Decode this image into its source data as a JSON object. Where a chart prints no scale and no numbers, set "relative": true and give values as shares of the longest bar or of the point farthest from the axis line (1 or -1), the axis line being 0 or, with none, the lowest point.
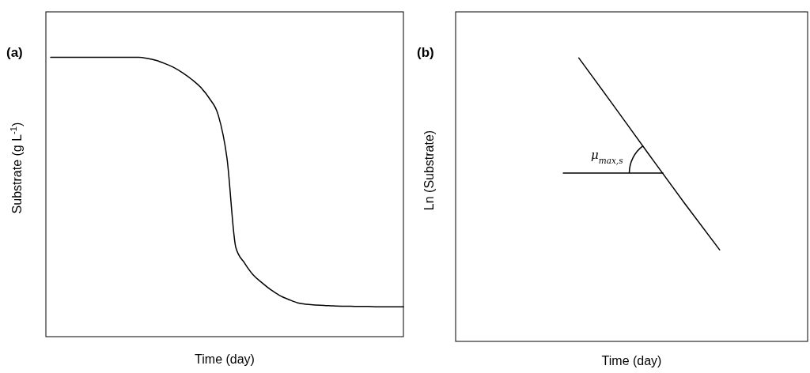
{
  "chart_data": [
    {
      "type": "line",
      "title": "(a)",
      "xlabel": "Time (day)",
      "ylabel": "Substrate (g L$^{-1}$)",
      "relative": true,
      "categories": [
        null,
        null,
        null,
        null,
        null,
        null,
        null,
        null,
        null,
        null,
        null,
        null,
        null,
        null,
        null,
        null,
        null,
        null,
        null,
        null,
        null,
        null,
        null,
        null,
        null,
        null,
        null,
        null,
        null,
        null,
        null,
        null,
        null,
        null,
        null,
        null,
        null,
        null,
        null,
        null,
        null
      ],
      "series": [
        {
          "color": "#000000",
          "values": [
            1.0,
            1.0,
            1.0,
            1.0,
            1.0,
            1.0,
            1.0,
            1.0,
            1.0,
            1.0,
            1.0,
            0.996,
            0.989,
            0.977,
            0.963,
            0.944,
            0.921,
            0.893,
            0.853,
            0.794,
            0.638,
            0.319,
            0.263,
            0.22,
            0.192,
            0.167,
            0.147,
            0.133,
            0.121,
            0.116,
            0.113,
            0.112,
            0.11,
            0.109,
            0.109,
            0.108,
            0.108,
            0.107,
            0.107,
            0.107,
            0.107
          ]
        }
      ]
    },
    {
      "type": "line",
      "title": "(b)",
      "xlabel": "Time (day)",
      "ylabel": "Ln (Substrate)",
      "relative": true,
      "categories": [
        null,
        null,
        null,
        null,
        null,
        null,
        null,
        null,
        null,
        null
      ],
      "annotations": [
        "μ$_{max,s}$"
      ],
      "series": [
        {
          "color": "#000000",
          "values": [
            null,
            null,
            null,
            1.0,
            0.83,
            0.658,
            0.488,
            0.323,
            null,
            null
          ]
        }
      ]
    }
  ]
}
